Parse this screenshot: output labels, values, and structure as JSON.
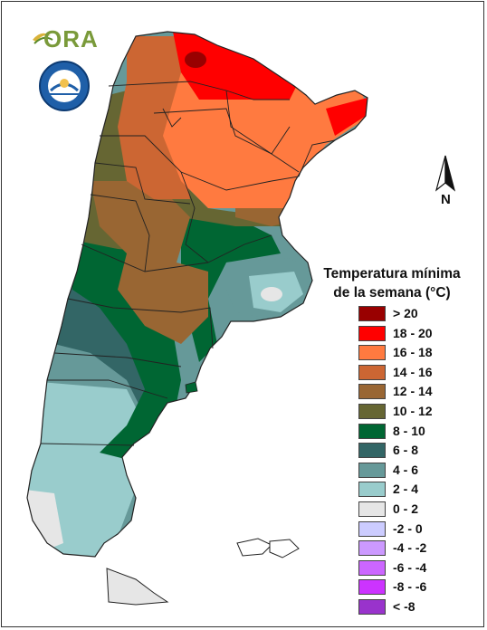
{
  "header": {
    "logo_text": "ORA",
    "seal_text": "SERVICIO METEOROLOGICO NACIONAL ARGENTINA"
  },
  "north_arrow": {
    "label": "N"
  },
  "legend": {
    "title_line1": "Temperatura mínima",
    "title_line2": "de la semana (°C)",
    "items": [
      {
        "label": "> 20",
        "color": "#990000"
      },
      {
        "label": "18 - 20",
        "color": "#ff0000"
      },
      {
        "label": "16 - 18",
        "color": "#ff7a40"
      },
      {
        "label": "14 - 16",
        "color": "#cc6633"
      },
      {
        "label": "12 - 14",
        "color": "#996633"
      },
      {
        "label": "10 - 12",
        "color": "#666633"
      },
      {
        "label": "8 - 10",
        "color": "#006633"
      },
      {
        "label": "6 - 8",
        "color": "#336666"
      },
      {
        "label": "4 - 6",
        "color": "#669999"
      },
      {
        "label": "2 - 4",
        "color": "#99cccc"
      },
      {
        "label": "0 - 2",
        "color": "#e6e6e6"
      },
      {
        "label": "-2 - 0",
        "color": "#ccccff"
      },
      {
        "label": "-4 - -2",
        "color": "#cc99ff"
      },
      {
        "label": "-6 - -4",
        "color": "#cc66ff"
      },
      {
        "label": "-8 - -6",
        "color": "#cc33ff"
      },
      {
        "label": "< -8",
        "color": "#9933cc"
      }
    ]
  }
}
